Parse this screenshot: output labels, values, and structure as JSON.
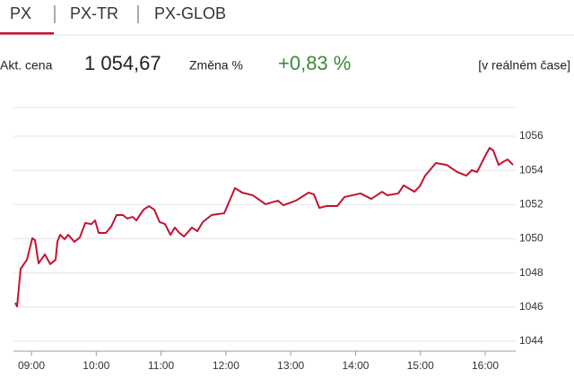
{
  "tabs": [
    "PX",
    "PX-TR",
    "PX-GLOB"
  ],
  "quote": {
    "price_label": "Akt. cena",
    "price": "1 054,67",
    "change_label": "Změna %",
    "change": "+0,83 %",
    "realtime": "[v reálném čase]"
  },
  "chart_data": {
    "type": "line",
    "x": [
      8.751,
      8.779,
      8.834,
      8.931,
      9.014,
      9.055,
      9.111,
      9.208,
      9.291,
      9.373,
      9.401,
      9.443,
      9.512,
      9.567,
      9.664,
      9.747,
      9.83,
      9.927,
      9.982,
      10.037,
      10.148,
      10.231,
      10.314,
      10.411,
      10.48,
      10.563,
      10.618,
      10.729,
      10.812,
      10.895,
      10.978,
      11.061,
      11.144,
      11.213,
      11.282,
      11.352,
      11.476,
      11.559,
      11.642,
      11.78,
      11.974,
      12.057,
      12.14,
      12.251,
      12.417,
      12.611,
      12.804,
      12.887,
      13.081,
      13.275,
      13.358,
      13.441,
      13.551,
      13.717,
      13.828,
      14.077,
      14.243,
      14.409,
      14.492,
      14.658,
      14.741,
      14.907,
      14.99,
      15.073,
      15.239,
      15.405,
      15.571,
      15.709,
      15.792,
      15.875,
      16.013,
      16.069,
      16.124,
      16.207,
      16.29,
      16.346,
      16.429
    ],
    "series": [
      {
        "name": "PX",
        "color": "#c4122f",
        "values": [
          1046.25,
          1046.04,
          1048.24,
          1048.77,
          1050.03,
          1049.92,
          1048.56,
          1049.08,
          1048.51,
          1048.77,
          1049.82,
          1050.23,
          1049.97,
          1050.23,
          1049.82,
          1050.08,
          1050.92,
          1050.86,
          1051.07,
          1050.34,
          1050.34,
          1050.71,
          1051.39,
          1051.39,
          1051.18,
          1051.28,
          1051.07,
          1051.7,
          1051.91,
          1051.7,
          1050.97,
          1050.86,
          1050.23,
          1050.65,
          1050.34,
          1050.13,
          1050.65,
          1050.44,
          1050.97,
          1051.39,
          1051.49,
          1052.23,
          1052.96,
          1052.7,
          1052.54,
          1052.02,
          1052.23,
          1051.96,
          1052.23,
          1052.7,
          1052.59,
          1051.81,
          1051.91,
          1051.91,
          1052.44,
          1052.65,
          1052.33,
          1052.75,
          1052.54,
          1052.65,
          1053.12,
          1052.75,
          1053.07,
          1053.69,
          1054.43,
          1054.32,
          1053.9,
          1053.69,
          1054.01,
          1053.9,
          1054.95,
          1055.32,
          1055.16,
          1054.32,
          1054.53,
          1054.64,
          1054.32
        ]
      }
    ],
    "xlim": [
      8.723,
      16.47
    ],
    "xticks": [
      {
        "value": 9,
        "label": "09:00"
      },
      {
        "value": 10,
        "label": "10:00"
      },
      {
        "value": 11,
        "label": "11:00"
      },
      {
        "value": 12,
        "label": "12:00"
      },
      {
        "value": 13,
        "label": "13:00"
      },
      {
        "value": 14,
        "label": "14:00"
      },
      {
        "value": 15,
        "label": "15:00"
      },
      {
        "value": 16,
        "label": "16:00"
      }
    ],
    "ylim": [
      1043.42,
      1057.68
    ],
    "yticks": [
      1044,
      1046,
      1048,
      1050,
      1052,
      1054,
      1056
    ],
    "grid": true
  }
}
